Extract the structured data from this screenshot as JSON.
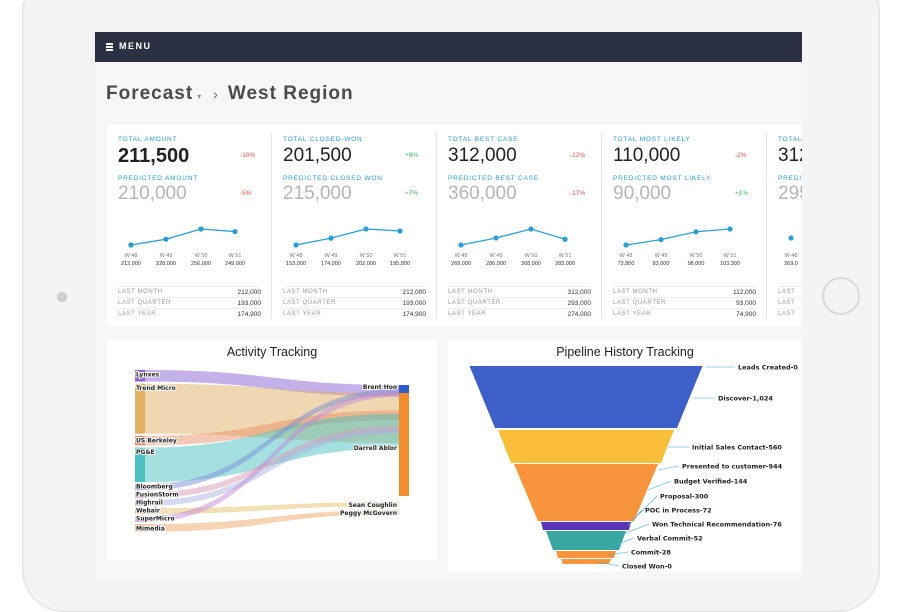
{
  "header": {
    "menu_label": "MENU"
  },
  "breadcrumb": {
    "parent": "Forecast",
    "current": "West Region"
  },
  "kpis": [
    {
      "label1": "TOTAL AMOUNT",
      "value1": "211,500",
      "pct1": "-10%",
      "pct1_sign": "neg",
      "label2": "PREDICTED AMOUNT",
      "value2": "210,000",
      "pct2": "-5%",
      "pct2_sign": "neg",
      "weeks": [
        "W 48",
        "W 49",
        "W 50",
        "W 51"
      ],
      "week_values_text": [
        "212,000",
        "228,000",
        "256,000",
        "249,000"
      ],
      "trend": [
        212000,
        228000,
        256000,
        249000
      ],
      "history": [
        {
          "label": "LAST MONTH",
          "value": "212,000"
        },
        {
          "label": "LAST QUARTER",
          "value": "193,000"
        },
        {
          "label": "LAST YEAR",
          "value": "174,900"
        }
      ]
    },
    {
      "label1": "TOTAL CLOSED-WON",
      "value1": "201,500",
      "pct1": "+9%",
      "pct1_sign": "pos",
      "label2": "PREDICTED CLOSED WON",
      "value2": "215,000",
      "pct2": "+7%",
      "pct2_sign": "pos",
      "weeks": [
        "W 48",
        "W 49",
        "W 50",
        "W 51"
      ],
      "week_values_text": [
        "153,000",
        "174,000",
        "202,000",
        "195,800"
      ],
      "trend": [
        153000,
        174000,
        202000,
        195800
      ],
      "history": [
        {
          "label": "LAST MONTH",
          "value": "212,000"
        },
        {
          "label": "LAST QUARTER",
          "value": "193,000"
        },
        {
          "label": "LAST YEAR",
          "value": "174,900"
        }
      ]
    },
    {
      "label1": "TOTAL BEST CASE",
      "value1": "312,000",
      "pct1": "-12%",
      "pct1_sign": "neg",
      "label2": "PREDICTED BEST CASE",
      "value2": "360,000",
      "pct2": "-17%",
      "pct2_sign": "neg",
      "weeks": [
        "W 48",
        "W 49",
        "W 50",
        "W 51"
      ],
      "week_values_text": [
        "269,000",
        "286,000",
        "308,000",
        "283,000"
      ],
      "trend": [
        269000,
        286000,
        308000,
        283000
      ],
      "history": [
        {
          "label": "LAST MONTH",
          "value": "312,000"
        },
        {
          "label": "LAST QUARTER",
          "value": "293,000"
        },
        {
          "label": "LAST YEAR",
          "value": "274,000"
        }
      ]
    },
    {
      "label1": "TOTAL MOST LIKELY",
      "value1": "110,000",
      "pct1": "-2%",
      "pct1_sign": "neg",
      "label2": "PREDICTED MOST LIKELY",
      "value2": "90,000",
      "pct2": "+1%",
      "pct2_sign": "pos",
      "weeks": [
        "W 48",
        "W 49",
        "W 50",
        "W 51"
      ],
      "week_values_text": [
        "72,800",
        "83,000",
        "98,000",
        "103,300"
      ],
      "trend": [
        72800,
        83000,
        98000,
        103300
      ],
      "history": [
        {
          "label": "LAST MONTH",
          "value": "112,000"
        },
        {
          "label": "LAST QUARTER",
          "value": "93,000"
        },
        {
          "label": "LAST YEAR",
          "value": "74,900"
        }
      ]
    },
    {
      "label1": "TOTAL",
      "value1": "312",
      "pct1": "",
      "pct1_sign": "neg",
      "label2": "PREDI",
      "value2": "295",
      "pct2": "",
      "pct2_sign": "pos",
      "weeks": [
        "W 48"
      ],
      "week_values_text": [
        "269,0"
      ],
      "trend": [
        269000
      ],
      "history": [
        {
          "label": "LAST",
          "value": ""
        },
        {
          "label": "LAST",
          "value": ""
        },
        {
          "label": "LAST",
          "value": ""
        }
      ]
    }
  ],
  "activity": {
    "title": "Activity Tracking",
    "sources": [
      {
        "name": "Lynxes",
        "color": "#8a64d6",
        "weight": 6
      },
      {
        "name": "Trend Micro",
        "color": "#e0b064",
        "weight": 26
      },
      {
        "name": "US Berkeley",
        "color": "#e8926a",
        "weight": 5
      },
      {
        "name": "PG&E",
        "color": "#4bc1c1",
        "weight": 18
      },
      {
        "name": "Bloomberg",
        "color": "#7a8fd8",
        "weight": 3
      },
      {
        "name": "FusionStorm",
        "color": "#d89ab8",
        "weight": 3
      },
      {
        "name": "Highrail",
        "color": "#aab4e0",
        "weight": 3
      },
      {
        "name": "Webair",
        "color": "#e6c46e",
        "weight": 3
      },
      {
        "name": "SuperMicro",
        "color": "#c48ad8",
        "weight": 3
      },
      {
        "name": "Mimedia",
        "color": "#f0a868",
        "weight": 4
      }
    ],
    "targets": [
      {
        "name": "Brent Hoo",
        "color": "#2d5bc7"
      },
      {
        "name": "Darrell Ablor",
        "color": "#f08c2c"
      },
      {
        "name": "Sean Coughlin",
        "color": "#f4d59a"
      },
      {
        "name": "Peggy McGovern",
        "color": "#f4d59a"
      }
    ]
  },
  "pipeline": {
    "title": "Pipeline History Tracking",
    "stages": [
      {
        "label": "Leads Created-0",
        "value": 0,
        "color": "#3d5fc7"
      },
      {
        "label": "Discover-1,024",
        "value": 1024,
        "color": "#3d5fc7"
      },
      {
        "label": "Initial Sales Contact-560",
        "value": 560,
        "color": "#f9bf3b"
      },
      {
        "label": "Presented to customer-944",
        "value": 944,
        "color": "#f7943c"
      },
      {
        "label": "Budget Verified-144",
        "value": 144,
        "color": "#f7943c"
      },
      {
        "label": "Proposal-300",
        "value": 300,
        "color": "#5a35b8"
      },
      {
        "label": "POC in Process-72",
        "value": 72,
        "color": "#5a35b8"
      },
      {
        "label": "Won Technical Recommendation-76",
        "value": 76,
        "color": "#38a7a2"
      },
      {
        "label": "Verbal Commit-52",
        "value": 52,
        "color": "#38a7a2"
      },
      {
        "label": "Commit-28",
        "value": 28,
        "color": "#f7943c"
      },
      {
        "label": "Closed Won-0",
        "value": 0,
        "color": "#f7943c"
      }
    ]
  }
}
